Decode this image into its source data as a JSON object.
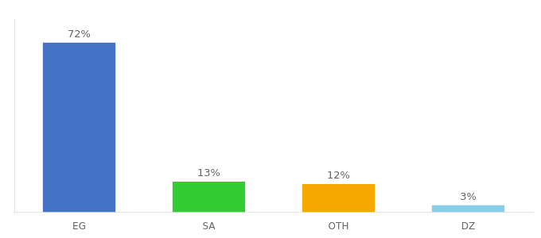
{
  "chart_data": {
    "type": "bar",
    "categories": [
      "EG",
      "SA",
      "OTH",
      "DZ"
    ],
    "values": [
      72,
      13,
      12,
      3
    ],
    "value_labels": [
      "72%",
      "13%",
      "12%",
      "3%"
    ],
    "data_labels": true,
    "colors": [
      "#4472c4",
      "#33cc33",
      "#f5a800",
      "#87ceeb"
    ],
    "ylim": [
      0,
      82
    ],
    "grid": false,
    "tick_labels": "x"
  }
}
